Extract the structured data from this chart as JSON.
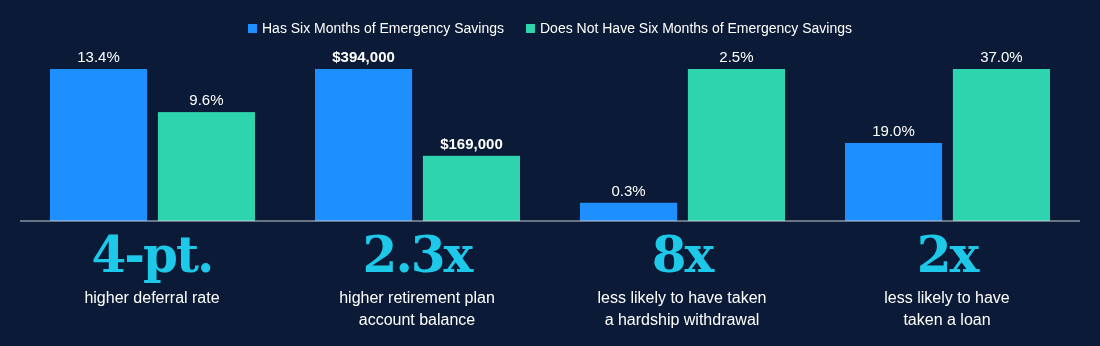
{
  "chart_data": [
    {
      "type": "bar",
      "categories": [
        null
      ],
      "ylim": [
        0,
        13.4
      ],
      "legend": "top",
      "xlabel": "higher deferral rate",
      "annotations": [
        "4-pt."
      ],
      "series": [
        {
          "name": "Has Six Months of Emergency Savings",
          "color": "#1e8fff",
          "values": [
            13.4
          ],
          "value_labels": [
            "13.4%"
          ]
        },
        {
          "name": "Does Not Have Six Months of Emergency Savings",
          "color": "#2dd4ad",
          "values": [
            9.6
          ],
          "value_labels": [
            "9.6%"
          ]
        }
      ]
    },
    {
      "type": "bar",
      "categories": [
        null
      ],
      "ylim": [
        0,
        394000
      ],
      "xlabel": "higher retirement plan\naccount balance",
      "annotations": [
        "2.3x"
      ],
      "series": [
        {
          "color": "#1e8fff",
          "values": [
            394000
          ],
          "value_labels": [
            "$394,000"
          ]
        },
        {
          "color": "#2dd4ad",
          "values": [
            169000
          ],
          "value_labels": [
            "$169,000"
          ]
        }
      ]
    },
    {
      "type": "bar",
      "categories": [
        null
      ],
      "ylim": [
        0,
        2.5
      ],
      "xlabel": "less likely to have taken\na hardship withdrawal",
      "annotations": [
        "8x"
      ],
      "series": [
        {
          "color": "#1e8fff",
          "values": [
            0.3
          ],
          "value_labels": [
            "0.3%"
          ]
        },
        {
          "color": "#2dd4ad",
          "values": [
            2.5
          ],
          "value_labels": [
            "2.5%"
          ]
        }
      ]
    },
    {
      "type": "bar",
      "categories": [
        null
      ],
      "ylim": [
        0,
        37
      ],
      "xlabel": "less likely to have\ntaken a loan",
      "annotations": [
        "2x"
      ],
      "series": [
        {
          "color": "#1e8fff",
          "values": [
            19.0
          ],
          "value_labels": [
            "19.0%"
          ]
        },
        {
          "color": "#2dd4ad",
          "values": [
            37.0
          ],
          "value_labels": [
            "37.0%"
          ]
        }
      ]
    }
  ]
}
